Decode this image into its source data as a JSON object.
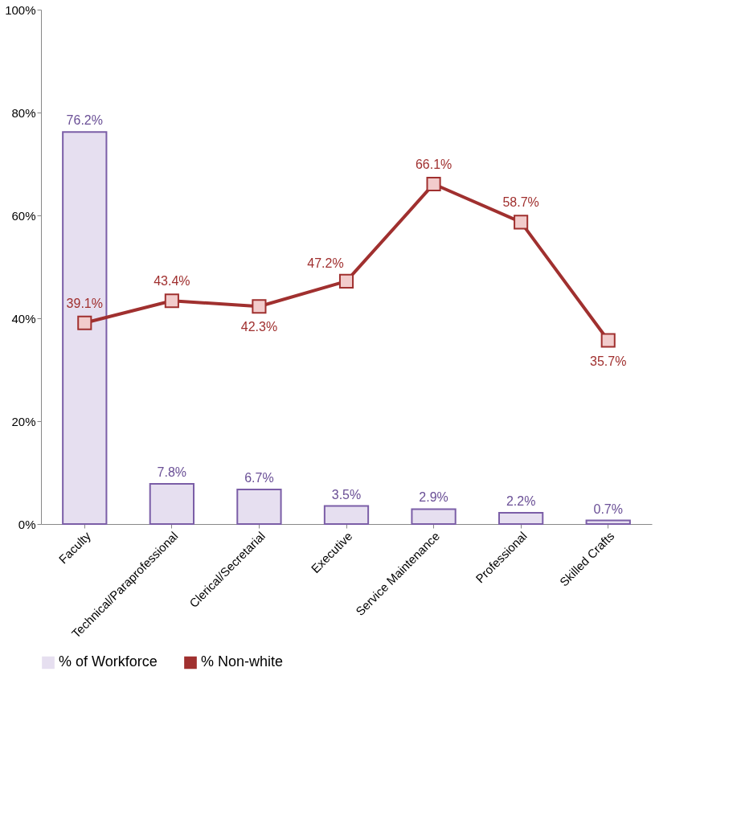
{
  "chart_data": {
    "type": "bar",
    "categories": [
      "Faculty",
      "Technical/Paraprofessional",
      "Clerical/Secretarial",
      "Executive",
      "Service Maintenance",
      "Professional",
      "Skilled Crafts"
    ],
    "series": [
      {
        "name": "% of Workforce",
        "color": "#e6dff0",
        "values": [
          76.2,
          7.8,
          6.7,
          3.5,
          2.9,
          2.2,
          0.7
        ],
        "value_labels": [
          "76.2%",
          "7.8%",
          "6.7%",
          "3.5%",
          "2.9%",
          "2.2%",
          "0.7%"
        ]
      },
      {
        "name": "% Non-white",
        "type": "line",
        "color": "#a0302f",
        "values": [
          39.1,
          43.4,
          42.3,
          47.2,
          66.1,
          58.7,
          35.7
        ],
        "value_labels": [
          "39.1%",
          "43.4%",
          "42.3%",
          "47.2%",
          "66.1%",
          "58.7%",
          "35.7%"
        ]
      }
    ],
    "ylim": [
      0,
      100
    ],
    "yticks": [
      {
        "value": 0,
        "label": "0%"
      },
      {
        "value": 20,
        "label": "20%"
      },
      {
        "value": 40,
        "label": "40%"
      },
      {
        "value": 60,
        "label": "60%"
      },
      {
        "value": 80,
        "label": "80%"
      },
      {
        "value": 100,
        "label": "100%"
      }
    ],
    "grid": false,
    "legend": "bottom",
    "marker": "square",
    "line_style": "solid"
  }
}
